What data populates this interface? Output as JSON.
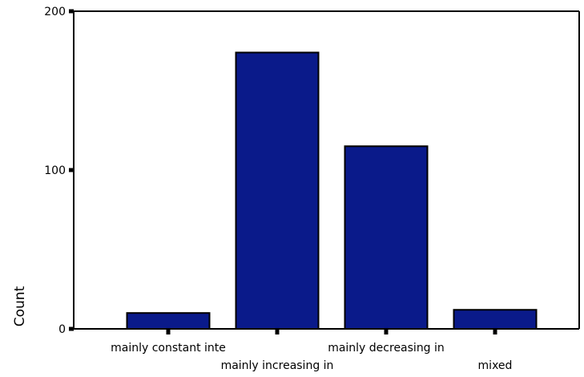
{
  "chart_data": {
    "type": "bar",
    "categories": [
      "mainly constant inte",
      "mainly increasing in",
      "mainly decreasing in",
      "mixed"
    ],
    "values": [
      10,
      174,
      115,
      12
    ],
    "title": "",
    "xlabel": "",
    "ylabel": "Count",
    "ylim": [
      0,
      200
    ],
    "yticks": [
      "0",
      "100",
      "200"
    ],
    "grid": false,
    "bar_color": "#0a1a8a"
  }
}
